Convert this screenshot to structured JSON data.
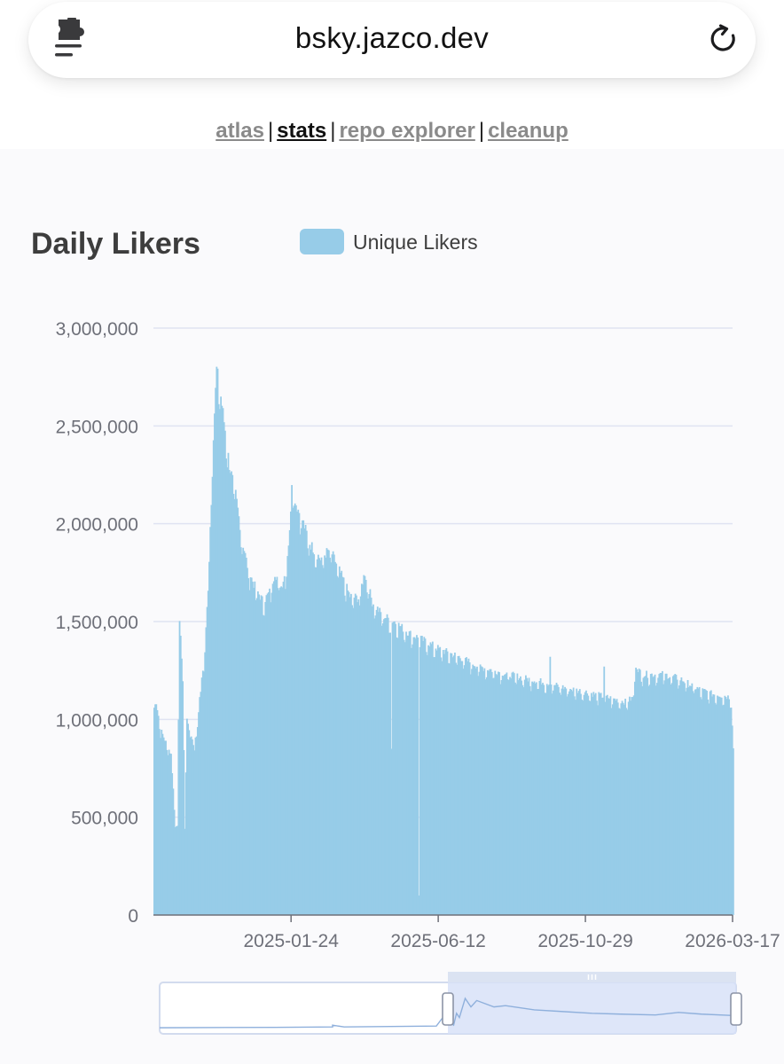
{
  "browser": {
    "url": "bsky.jazco.dev",
    "extension_icon": "puzzle-menu-icon",
    "reload_icon": "reload-icon"
  },
  "nav": {
    "links": [
      {
        "label": "atlas",
        "active": false
      },
      {
        "label": "stats",
        "active": true
      },
      {
        "label": "repo explorer",
        "active": false
      },
      {
        "label": "cleanup",
        "active": false
      }
    ],
    "separator": "|"
  },
  "colors": {
    "bar": "#97cce8",
    "grid": "#e0e3f2",
    "axis_text": "#6e7079",
    "zoom_window": "#d6e0f7",
    "zoom_border": "#d2dbee",
    "zoom_line": "#8fb0dc"
  },
  "chart_data": {
    "type": "bar",
    "title": "Daily Likers",
    "legend": {
      "position": "top",
      "entries": [
        "Unique Likers"
      ]
    },
    "series": [
      {
        "name": "Unique Likers"
      }
    ],
    "x_axis": {
      "type": "date",
      "range": [
        "2024-09-16",
        "2026-03-17"
      ],
      "tick_labels": [
        "2025-01-24",
        "2025-06-12",
        "2025-10-29",
        "2026-03-17"
      ]
    },
    "y_axis": {
      "range": [
        0,
        3000000
      ],
      "tick_labels": [
        "0",
        "500,000",
        "1,000,000",
        "1,500,000",
        "2,000,000",
        "2,500,000",
        "3,000,000"
      ]
    },
    "grid": true,
    "keypoints": [
      [
        "2024-09-16",
        1060000
      ],
      [
        "2024-09-18",
        1090000
      ],
      [
        "2024-09-22",
        950000
      ],
      [
        "2024-09-28",
        870000
      ],
      [
        "2024-10-02",
        820000
      ],
      [
        "2024-10-06",
        470000
      ],
      [
        "2024-10-08",
        450000
      ],
      [
        "2024-10-10",
        1520000
      ],
      [
        "2024-10-13",
        1250000
      ],
      [
        "2024-10-15",
        440000
      ],
      [
        "2024-10-17",
        1010000
      ],
      [
        "2024-10-21",
        920000
      ],
      [
        "2024-10-24",
        850000
      ],
      [
        "2024-10-29",
        1100000
      ],
      [
        "2024-11-02",
        1300000
      ],
      [
        "2024-11-06",
        1650000
      ],
      [
        "2024-11-10",
        2350000
      ],
      [
        "2024-11-14",
        2790000
      ],
      [
        "2024-11-18",
        2650000
      ],
      [
        "2024-11-22",
        2480000
      ],
      [
        "2024-11-26",
        2300000
      ],
      [
        "2024-12-02",
        2150000
      ],
      [
        "2024-12-08",
        1920000
      ],
      [
        "2024-12-14",
        1760000
      ],
      [
        "2024-12-20",
        1680000
      ],
      [
        "2024-12-28",
        1600000
      ],
      [
        "2025-01-03",
        1650000
      ],
      [
        "2025-01-08",
        1750000
      ],
      [
        "2025-01-14",
        1680000
      ],
      [
        "2025-01-18",
        1750000
      ],
      [
        "2025-01-22",
        1950000
      ],
      [
        "2025-01-24",
        2220000
      ],
      [
        "2025-01-28",
        2100000
      ],
      [
        "2025-02-03",
        2020000
      ],
      [
        "2025-02-10",
        1900000
      ],
      [
        "2025-02-20",
        1820000
      ],
      [
        "2025-03-01",
        1870000
      ],
      [
        "2025-03-10",
        1760000
      ],
      [
        "2025-03-20",
        1630000
      ],
      [
        "2025-03-28",
        1620000
      ],
      [
        "2025-04-03",
        1750000
      ],
      [
        "2025-04-10",
        1600000
      ],
      [
        "2025-04-20",
        1530000
      ],
      [
        "2025-05-01",
        1500000
      ],
      [
        "2025-05-15",
        1440000
      ],
      [
        "2025-05-30",
        1400000
      ],
      [
        "2025-06-12",
        1360000
      ],
      [
        "2025-07-01",
        1320000
      ],
      [
        "2025-07-20",
        1270000
      ],
      [
        "2025-08-10",
        1240000
      ],
      [
        "2025-09-01",
        1210000
      ],
      [
        "2025-09-20",
        1190000
      ],
      [
        "2025-10-10",
        1160000
      ],
      [
        "2025-10-29",
        1140000
      ],
      [
        "2025-11-20",
        1110000
      ],
      [
        "2025-12-05",
        1090000
      ],
      [
        "2025-12-12",
        1110000
      ],
      [
        "2025-12-15",
        1280000
      ],
      [
        "2025-12-20",
        1230000
      ],
      [
        "2026-01-10",
        1230000
      ],
      [
        "2026-01-25",
        1210000
      ],
      [
        "2026-02-10",
        1160000
      ],
      [
        "2026-02-25",
        1130000
      ],
      [
        "2026-03-10",
        1120000
      ],
      [
        "2026-03-15",
        1110000
      ],
      [
        "2026-03-17",
        850000
      ]
    ],
    "dips": [
      [
        "2025-04-28",
        850000
      ],
      [
        "2025-05-24",
        100000
      ]
    ],
    "spikes": [
      [
        "2025-09-25",
        1320000
      ],
      [
        "2025-11-15",
        1270000
      ]
    ]
  },
  "zoom": {
    "range_start_fraction": 0.5,
    "range_end_fraction": 1.0,
    "history": [
      [
        0.0,
        0.06
      ],
      [
        0.2,
        0.07
      ],
      [
        0.3,
        0.08
      ],
      [
        0.3,
        0.12
      ],
      [
        0.32,
        0.08
      ],
      [
        0.48,
        0.1
      ],
      [
        0.49,
        0.28
      ],
      [
        0.5,
        0.22
      ],
      [
        0.51,
        0.12
      ],
      [
        0.515,
        0.4
      ],
      [
        0.52,
        0.3
      ],
      [
        0.53,
        0.75
      ],
      [
        0.54,
        0.55
      ],
      [
        0.55,
        0.7
      ],
      [
        0.58,
        0.55
      ],
      [
        0.6,
        0.58
      ],
      [
        0.65,
        0.48
      ],
      [
        0.7,
        0.44
      ],
      [
        0.75,
        0.4
      ],
      [
        0.8,
        0.38
      ],
      [
        0.86,
        0.36
      ],
      [
        0.9,
        0.42
      ],
      [
        0.94,
        0.38
      ],
      [
        0.99,
        0.35
      ],
      [
        1.0,
        0.3
      ]
    ]
  }
}
